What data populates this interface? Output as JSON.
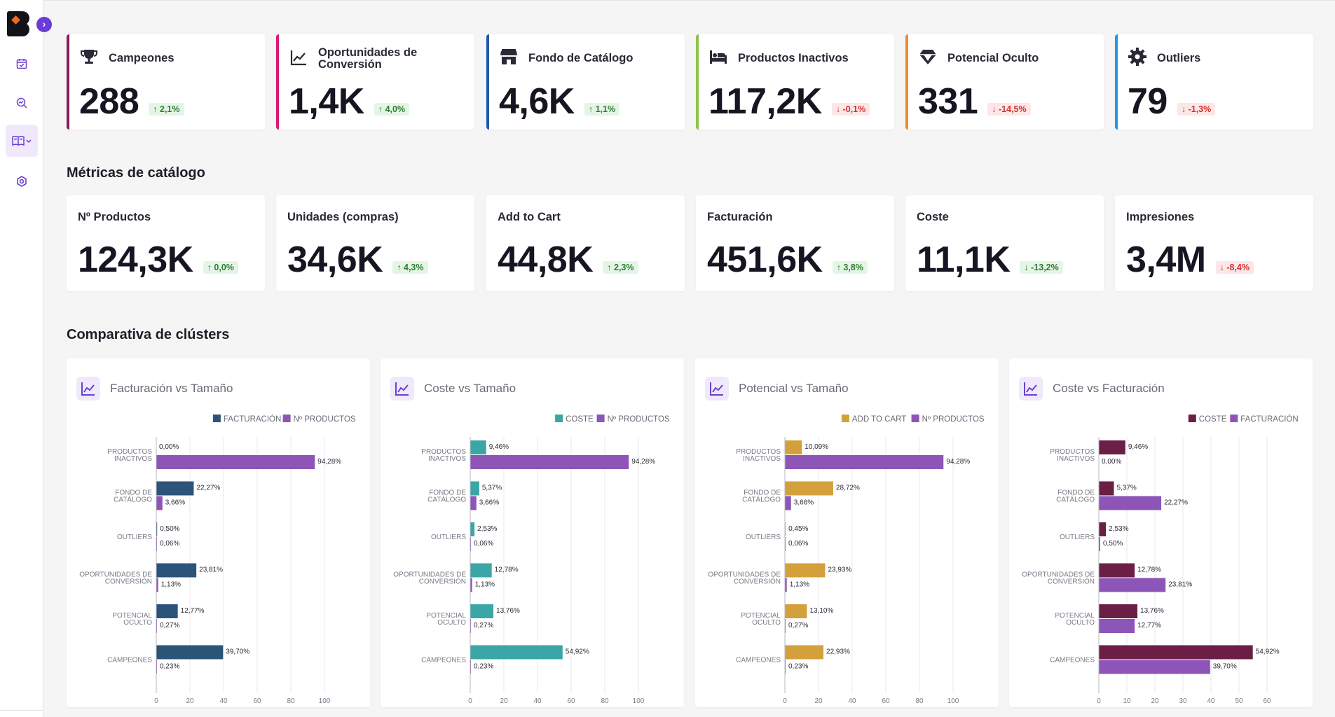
{
  "kpis": [
    {
      "title": "Campeones",
      "value": "288",
      "delta": "2,1%",
      "trend": "up",
      "color": "#8a1a5e",
      "icon": "trophy-icon"
    },
    {
      "title": "Oportunidades de Conversión",
      "value": "1,4K",
      "delta": "4,0%",
      "trend": "up",
      "color": "#d81b74",
      "icon": "trending-up-icon"
    },
    {
      "title": "Fondo de Catálogo",
      "value": "4,6K",
      "delta": "1,1%",
      "trend": "up",
      "color": "#1e5aa8",
      "icon": "store-icon"
    },
    {
      "title": "Productos Inactivos",
      "value": "117,2K",
      "delta": "-0,1%",
      "trend": "down",
      "color": "#8bc34a",
      "icon": "bed-icon"
    },
    {
      "title": "Potencial Oculto",
      "value": "331",
      "delta": "-14,5%",
      "trend": "down",
      "color": "#f28c28",
      "icon": "diamond-icon"
    },
    {
      "title": "Outliers",
      "value": "79",
      "delta": "-1,3%",
      "trend": "down",
      "color": "#1e9be0",
      "icon": "gear-icon"
    }
  ],
  "metrics_title": "Métricas de catálogo",
  "metrics": [
    {
      "title": "Nº Productos",
      "value": "124,3K",
      "delta": "0,0%",
      "trend": "up"
    },
    {
      "title": "Unidades (compras)",
      "value": "34,6K",
      "delta": "4,3%",
      "trend": "up"
    },
    {
      "title": "Add to Cart",
      "value": "44,8K",
      "delta": "2,3%",
      "trend": "up"
    },
    {
      "title": "Facturación",
      "value": "451,6K",
      "delta": "3,8%",
      "trend": "up"
    },
    {
      "title": "Coste",
      "value": "11,1K",
      "delta": "-13,2%",
      "trend": "down-good"
    },
    {
      "title": "Impresiones",
      "value": "3,4M",
      "delta": "-8,4%",
      "trend": "down"
    }
  ],
  "clusters_title": "Comparativa de clústers",
  "chart_data": [
    {
      "type": "bar",
      "orientation": "horizontal",
      "title": "Facturación vs Tamaño",
      "categories": [
        [
          "PRODUCTOS",
          "INACTIVOS"
        ],
        [
          "FONDO DE",
          "CATÁLOGO"
        ],
        [
          "OUTLIERS"
        ],
        [
          "OPORTUNIDADES DE",
          "CONVERSIÓN"
        ],
        [
          "POTENCIAL",
          "OCULTO"
        ],
        [
          "CAMPEONES"
        ]
      ],
      "series": [
        {
          "name": "FACTURACIÓN",
          "color": "#2c5378",
          "values": [
            0.0,
            22.27,
            0.5,
            23.81,
            12.77,
            39.7
          ],
          "labels": [
            "0,00%",
            "22,27%",
            "0,50%",
            "23,81%",
            "12,77%",
            "39,70%"
          ]
        },
        {
          "name": "Nº PRODUCTOS",
          "color": "#8e55b9",
          "values": [
            94.28,
            3.66,
            0.06,
            1.13,
            0.27,
            0.23
          ],
          "labels": [
            "94,28%",
            "3,66%",
            "0,06%",
            "1,13%",
            "0,27%",
            "0,23%"
          ]
        }
      ],
      "xlim": [
        0,
        100
      ],
      "xticks": [
        0,
        20,
        40,
        60,
        80,
        100
      ]
    },
    {
      "type": "bar",
      "orientation": "horizontal",
      "title": "Coste vs Tamaño",
      "categories": [
        [
          "PRODUCTOS",
          "INACTIVOS"
        ],
        [
          "FONDO DE",
          "CATÁLOGO"
        ],
        [
          "OUTLIERS"
        ],
        [
          "OPORTUNIDADES DE",
          "CONVERSIÓN"
        ],
        [
          "POTENCIAL",
          "OCULTO"
        ],
        [
          "CAMPEONES"
        ]
      ],
      "series": [
        {
          "name": "COSTE",
          "color": "#3aa6a6",
          "values": [
            9.46,
            5.37,
            2.53,
            12.78,
            13.76,
            54.92
          ],
          "labels": [
            "9,46%",
            "5,37%",
            "2,53%",
            "12,78%",
            "13,76%",
            "54,92%"
          ]
        },
        {
          "name": "Nº PRODUCTOS",
          "color": "#8e55b9",
          "values": [
            94.28,
            3.66,
            0.06,
            1.13,
            0.27,
            0.23
          ],
          "labels": [
            "94,28%",
            "3,66%",
            "0,06%",
            "1,13%",
            "0,27%",
            "0,23%"
          ]
        }
      ],
      "xlim": [
        0,
        100
      ],
      "xticks": [
        0,
        20,
        40,
        60,
        80,
        100
      ]
    },
    {
      "type": "bar",
      "orientation": "horizontal",
      "title": "Potencial vs Tamaño",
      "categories": [
        [
          "PRODUCTOS",
          "INACTIVOS"
        ],
        [
          "FONDO DE",
          "CATÁLOGO"
        ],
        [
          "OUTLIERS"
        ],
        [
          "OPORTUNIDADES DE",
          "CONVERSIÓN"
        ],
        [
          "POTENCIAL",
          "OCULTO"
        ],
        [
          "CAMPEONES"
        ]
      ],
      "series": [
        {
          "name": "ADD TO CART",
          "color": "#d4a03c",
          "values": [
            10.09,
            28.72,
            0.45,
            23.93,
            13.1,
            22.93
          ],
          "labels": [
            "10,09%",
            "28,72%",
            "0,45%",
            "23,93%",
            "13,10%",
            "22,93%"
          ]
        },
        {
          "name": "Nº PRODUCTOS",
          "color": "#8e55b9",
          "values": [
            94.28,
            3.66,
            0.06,
            1.13,
            0.27,
            0.23
          ],
          "labels": [
            "94,28%",
            "3,66%",
            "0,06%",
            "1,13%",
            "0,27%",
            "0,23%"
          ]
        }
      ],
      "xlim": [
        0,
        100
      ],
      "xticks": [
        0,
        20,
        40,
        60,
        80,
        100
      ]
    },
    {
      "type": "bar",
      "orientation": "horizontal",
      "title": "Coste vs Facturación",
      "categories": [
        [
          "PRODUCTOS",
          "INACTIVOS"
        ],
        [
          "FONDO DE",
          "CATÁLOGO"
        ],
        [
          "OUTLIERS"
        ],
        [
          "OPORTUNIDADES DE",
          "CONVERSIÓN"
        ],
        [
          "POTENCIAL",
          "OCULTO"
        ],
        [
          "CAMPEONES"
        ]
      ],
      "series": [
        {
          "name": "COSTE",
          "color": "#6b1f45",
          "values": [
            9.46,
            5.37,
            2.53,
            12.78,
            13.76,
            54.92
          ],
          "labels": [
            "9,46%",
            "5,37%",
            "2,53%",
            "12,78%",
            "13,76%",
            "54,92%"
          ]
        },
        {
          "name": "FACTURACIÓN",
          "color": "#8e55b9",
          "values": [
            0.0,
            22.27,
            0.5,
            23.81,
            12.77,
            39.7
          ],
          "labels": [
            "0,00%",
            "22,27%",
            "0,50%",
            "23,81%",
            "12,77%",
            "39,70%"
          ]
        }
      ],
      "xlim": [
        0,
        60
      ],
      "xticks": [
        0,
        10,
        20,
        30,
        40,
        50,
        60
      ]
    }
  ]
}
